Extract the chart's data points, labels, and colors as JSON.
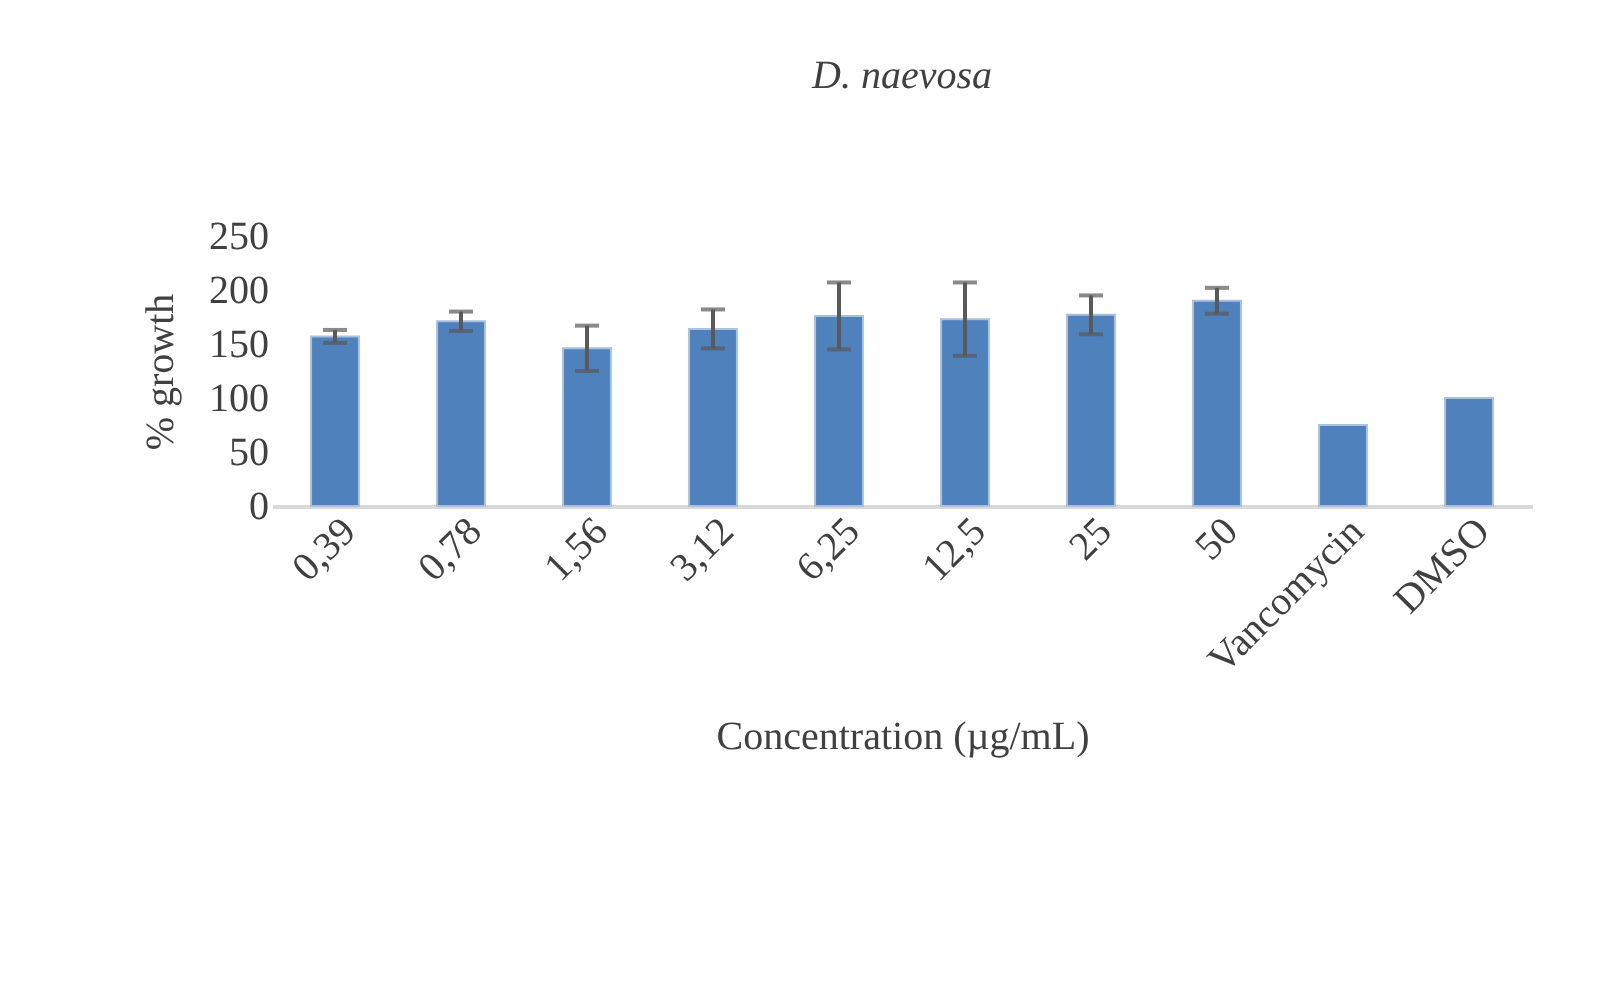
{
  "chart_data": {
    "type": "bar",
    "title": "D. naevosa",
    "xlabel": "Concentration (µg/mL)",
    "ylabel": "% growth",
    "categories": [
      "0,39",
      "0,78",
      "1,56",
      "3,12",
      "6,25",
      "12,5",
      "25",
      "50",
      "Vancomycin",
      "DMSO"
    ],
    "values": [
      157,
      171,
      146,
      164,
      176,
      173,
      177,
      190,
      75,
      100
    ],
    "errors": [
      6,
      9,
      21,
      18,
      31,
      34,
      18,
      12,
      null,
      null
    ],
    "color": "#4f81bd",
    "ylim": [
      0,
      250
    ],
    "yticks": [
      0,
      50,
      100,
      150,
      200,
      250
    ],
    "grid": false
  }
}
